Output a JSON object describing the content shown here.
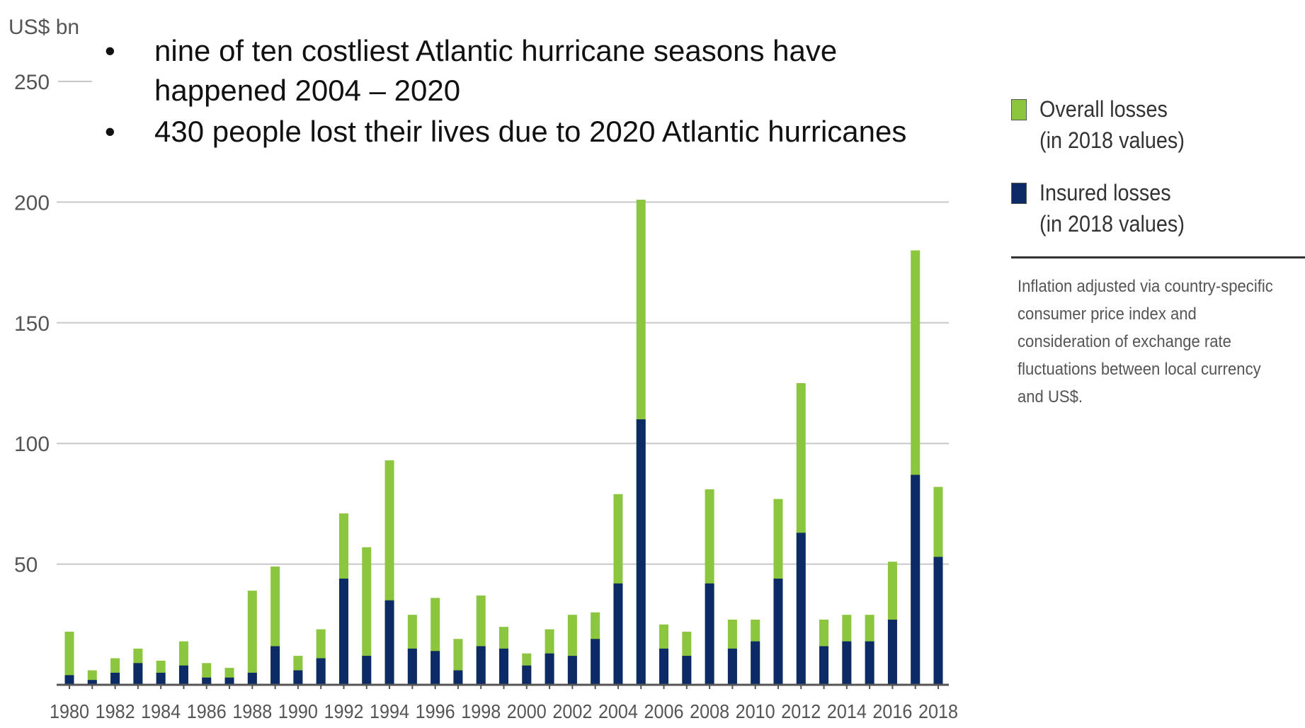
{
  "bullets": [
    {
      "text": "nine of ten costliest Atlantic hurricane seasons have happened 2004 – 2020"
    },
    {
      "text": "430 people lost their lives due to 2020 Atlantic hurricanes"
    }
  ],
  "legend": {
    "overall": {
      "line1": "Overall losses",
      "line2": "(in 2018 values)",
      "color": "#8cc63f"
    },
    "insured": {
      "line1": "Insured losses",
      "line2": "(in 2018 values)",
      "color": "#0b2a66"
    }
  },
  "footnote": "Inflation adjusted via country-specific consumer price index and consideration of exchange rate fluctuations between local currency and US$.",
  "chart_data": {
    "type": "bar",
    "stacked_overlay": true,
    "ylabel": "US$ bn",
    "ylim": [
      0,
      250
    ],
    "yticks": [
      50,
      100,
      150,
      200,
      250
    ],
    "grid": true,
    "legend_position": "right",
    "x": [
      1980,
      1981,
      1982,
      1983,
      1984,
      1985,
      1986,
      1987,
      1988,
      1989,
      1990,
      1991,
      1992,
      1993,
      1994,
      1995,
      1996,
      1997,
      1998,
      1999,
      2000,
      2001,
      2002,
      2003,
      2004,
      2005,
      2006,
      2007,
      2008,
      2009,
      2010,
      2011,
      2012,
      2013,
      2014,
      2015,
      2016,
      2017,
      2018
    ],
    "xtick_labels": [
      "1980",
      "1982",
      "1984",
      "1986",
      "1988",
      "1990",
      "1992",
      "1994",
      "1996",
      "1998",
      "2000",
      "2002",
      "2004",
      "2006",
      "2008",
      "2010",
      "2012",
      "2014",
      "2016",
      "2018"
    ],
    "series": [
      {
        "name": "Overall losses (in 2018 values)",
        "color": "#8cc63f",
        "values": [
          22,
          6,
          11,
          15,
          10,
          18,
          9,
          7,
          39,
          49,
          12,
          23,
          71,
          57,
          93,
          29,
          36,
          19,
          37,
          24,
          13,
          23,
          29,
          30,
          79,
          201,
          25,
          22,
          81,
          27,
          27,
          77,
          125,
          27,
          29,
          29,
          51,
          180,
          82
        ]
      },
      {
        "name": "Insured losses (in 2018 values)",
        "color": "#0b2a66",
        "values": [
          4,
          2,
          5,
          9,
          5,
          8,
          3,
          3,
          5,
          16,
          6,
          11,
          44,
          12,
          35,
          15,
          14,
          6,
          16,
          15,
          8,
          13,
          12,
          19,
          42,
          110,
          15,
          12,
          42,
          15,
          18,
          44,
          63,
          16,
          18,
          18,
          27,
          87,
          53
        ]
      }
    ]
  }
}
